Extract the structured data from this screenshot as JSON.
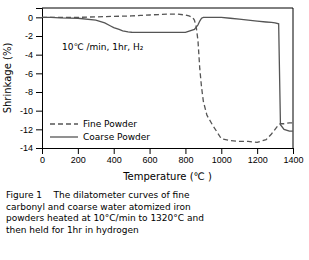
{
  "chart_data": {
    "type": "line",
    "xlabel": "Temperature (℃ )",
    "ylabel": "Shrinkage (%)",
    "xlim": [
      0,
      1400
    ],
    "ylim": [
      -14,
      1
    ],
    "xticks": [
      0,
      200,
      400,
      600,
      800,
      1000,
      1200,
      1400
    ],
    "yticks": [
      0,
      -2,
      -4,
      -6,
      -8,
      -10,
      -12,
      -14
    ],
    "annotation": "10℃ /min, 1hr, H₂",
    "caption": "Figure 1    The dilatometer curves of fine\ncarbonyl and coarse water atomized iron\npowders heated at 10°C/min to 1320°C and\nthen held for 1hr in hydrogen",
    "grid": false,
    "legend": "lower left",
    "series": [
      {
        "name": "Fine Powder",
        "color": "#555555",
        "line_style": "dashed",
        "x": [
          0,
          50,
          100,
          200,
          300,
          400,
          500,
          550,
          600,
          650,
          700,
          750,
          800,
          820,
          840,
          850,
          860,
          870,
          875,
          880,
          890,
          900,
          920,
          950,
          1000,
          1050,
          1100,
          1150,
          1200,
          1250,
          1280,
          1300,
          1320,
          1330,
          1350,
          1380,
          1400
        ],
        "values": [
          0,
          0.0,
          0.0,
          0.0,
          0.05,
          0.1,
          0.15,
          0.2,
          0.25,
          0.3,
          0.35,
          0.35,
          0.25,
          0.15,
          0.0,
          -0.3,
          -1.0,
          -2.5,
          -4.0,
          -5.5,
          -7.5,
          -9.0,
          -10.5,
          -11.5,
          -13.0,
          -13.2,
          -13.3,
          -13.3,
          -13.4,
          -13.1,
          -12.5,
          -12.0,
          -11.5,
          -11.4,
          -11.4,
          -11.3,
          -11.3
        ]
      },
      {
        "name": "Coarse Powder",
        "color": "#555555",
        "line_style": "solid",
        "x": [
          0,
          50,
          100,
          200,
          300,
          350,
          380,
          400,
          430,
          450,
          480,
          500,
          550,
          600,
          700,
          800,
          850,
          870,
          880,
          890,
          900,
          920,
          950,
          1000,
          1050,
          1100,
          1150,
          1200,
          1250,
          1280,
          1300,
          1320,
          1330,
          1350,
          1380,
          1400
        ],
        "values": [
          0,
          0.0,
          -0.05,
          -0.1,
          -0.3,
          -0.6,
          -0.9,
          -1.1,
          -1.3,
          -1.45,
          -1.55,
          -1.6,
          -1.62,
          -1.62,
          -1.62,
          -1.62,
          -1.3,
          -0.8,
          -0.4,
          -0.1,
          0.0,
          0.0,
          0.0,
          0.0,
          -0.1,
          -0.2,
          -0.3,
          -0.4,
          -0.5,
          -0.55,
          -0.6,
          -0.7,
          -11.5,
          -12.0,
          -12.2,
          -12.2
        ]
      }
    ]
  }
}
